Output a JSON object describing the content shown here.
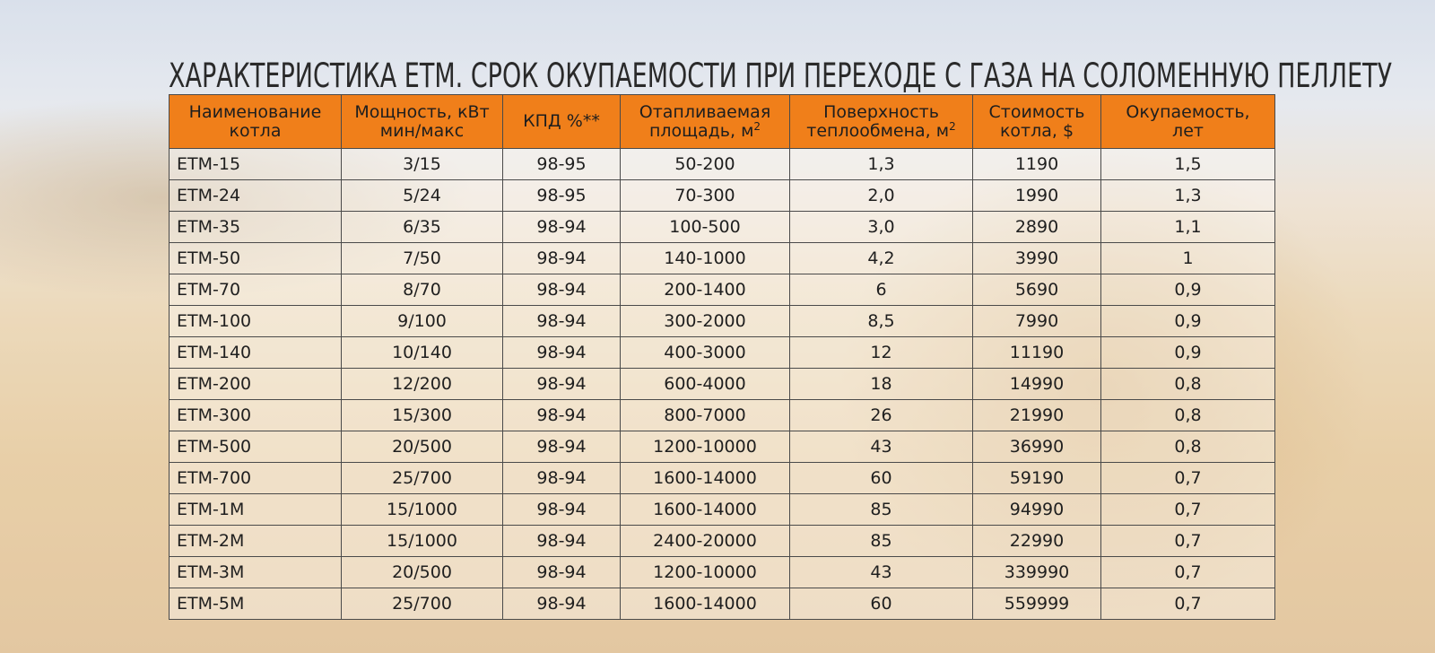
{
  "title": "ХАРАКТЕРИСТИКА ЕТМ. СРОК ОКУПАЕМОСТИ ПРИ ПЕРЕХОДЕ С ГАЗА НА СОЛОМЕННУЮ ПЕЛЛЕТУ",
  "header": {
    "name_l1": "Наименование",
    "name_l2": "котла",
    "power_l1": "Мощность, кВт",
    "power_l2": "мин/макс",
    "eff": "КПД %**",
    "area_l1": "Отапливаемая",
    "area_l2": "площадь, м",
    "area_sup": "2",
    "surface_l1": "Поверхность",
    "surface_l2": "теплообмена, м",
    "surface_sup": "2",
    "cost_l1": "Стоимость",
    "cost_l2": "котла, $",
    "payback_l1": "Окупаемость,",
    "payback_l2": "лет"
  },
  "rows": [
    {
      "name": "ЕТМ-15",
      "power": "3/15",
      "eff": "98-95",
      "area": "50-200",
      "surface": "1,3",
      "cost": "1190",
      "payback": "1,5"
    },
    {
      "name": "ЕТМ-24",
      "power": "5/24",
      "eff": "98-95",
      "area": "70-300",
      "surface": "2,0",
      "cost": "1990",
      "payback": "1,3"
    },
    {
      "name": "ЕТМ-35",
      "power": "6/35",
      "eff": "98-94",
      "area": "100-500",
      "surface": "3,0",
      "cost": "2890",
      "payback": "1,1"
    },
    {
      "name": "ЕТМ-50",
      "power": "7/50",
      "eff": "98-94",
      "area": "140-1000",
      "surface": "4,2",
      "cost": "3990",
      "payback": "1"
    },
    {
      "name": "ЕТМ-70",
      "power": "8/70",
      "eff": "98-94",
      "area": "200-1400",
      "surface": "6",
      "cost": "5690",
      "payback": "0,9"
    },
    {
      "name": "ЕТМ-100",
      "power": "9/100",
      "eff": "98-94",
      "area": "300-2000",
      "surface": "8,5",
      "cost": "7990",
      "payback": "0,9"
    },
    {
      "name": "ЕТМ-140",
      "power": "10/140",
      "eff": "98-94",
      "area": "400-3000",
      "surface": "12",
      "cost": "11190",
      "payback": "0,9"
    },
    {
      "name": "ЕТМ-200",
      "power": "12/200",
      "eff": "98-94",
      "area": "600-4000",
      "surface": "18",
      "cost": "14990",
      "payback": "0,8"
    },
    {
      "name": "ЕТМ-300",
      "power": "15/300",
      "eff": "98-94",
      "area": "800-7000",
      "surface": "26",
      "cost": "21990",
      "payback": "0,8"
    },
    {
      "name": "ЕТМ-500",
      "power": "20/500",
      "eff": "98-94",
      "area": "1200-10000",
      "surface": "43",
      "cost": "36990",
      "payback": "0,8"
    },
    {
      "name": "ЕТМ-700",
      "power": "25/700",
      "eff": "98-94",
      "area": "1600-14000",
      "surface": "60",
      "cost": "59190",
      "payback": "0,7"
    },
    {
      "name": "ЕТМ-1М",
      "power": "15/1000",
      "eff": "98-94",
      "area": "1600-14000",
      "surface": "85",
      "cost": "94990",
      "payback": "0,7"
    },
    {
      "name": "ЕТМ-2М",
      "power": "15/1000",
      "eff": "98-94",
      "area": "2400-20000",
      "surface": "85",
      "cost": "22990",
      "payback": "0,7"
    },
    {
      "name": "ЕТМ-3М",
      "power": "20/500",
      "eff": "98-94",
      "area": "1200-10000",
      "surface": "43",
      "cost": "339990",
      "payback": "0,7"
    },
    {
      "name": "ЕТМ-5М",
      "power": "25/700",
      "eff": "98-94",
      "area": "1600-14000",
      "surface": "60",
      "cost": "559999",
      "payback": "0,7"
    }
  ],
  "colors": {
    "header_bg": "#f07f1a",
    "text": "#1f1f1f",
    "grid": "#4a4a4a"
  }
}
